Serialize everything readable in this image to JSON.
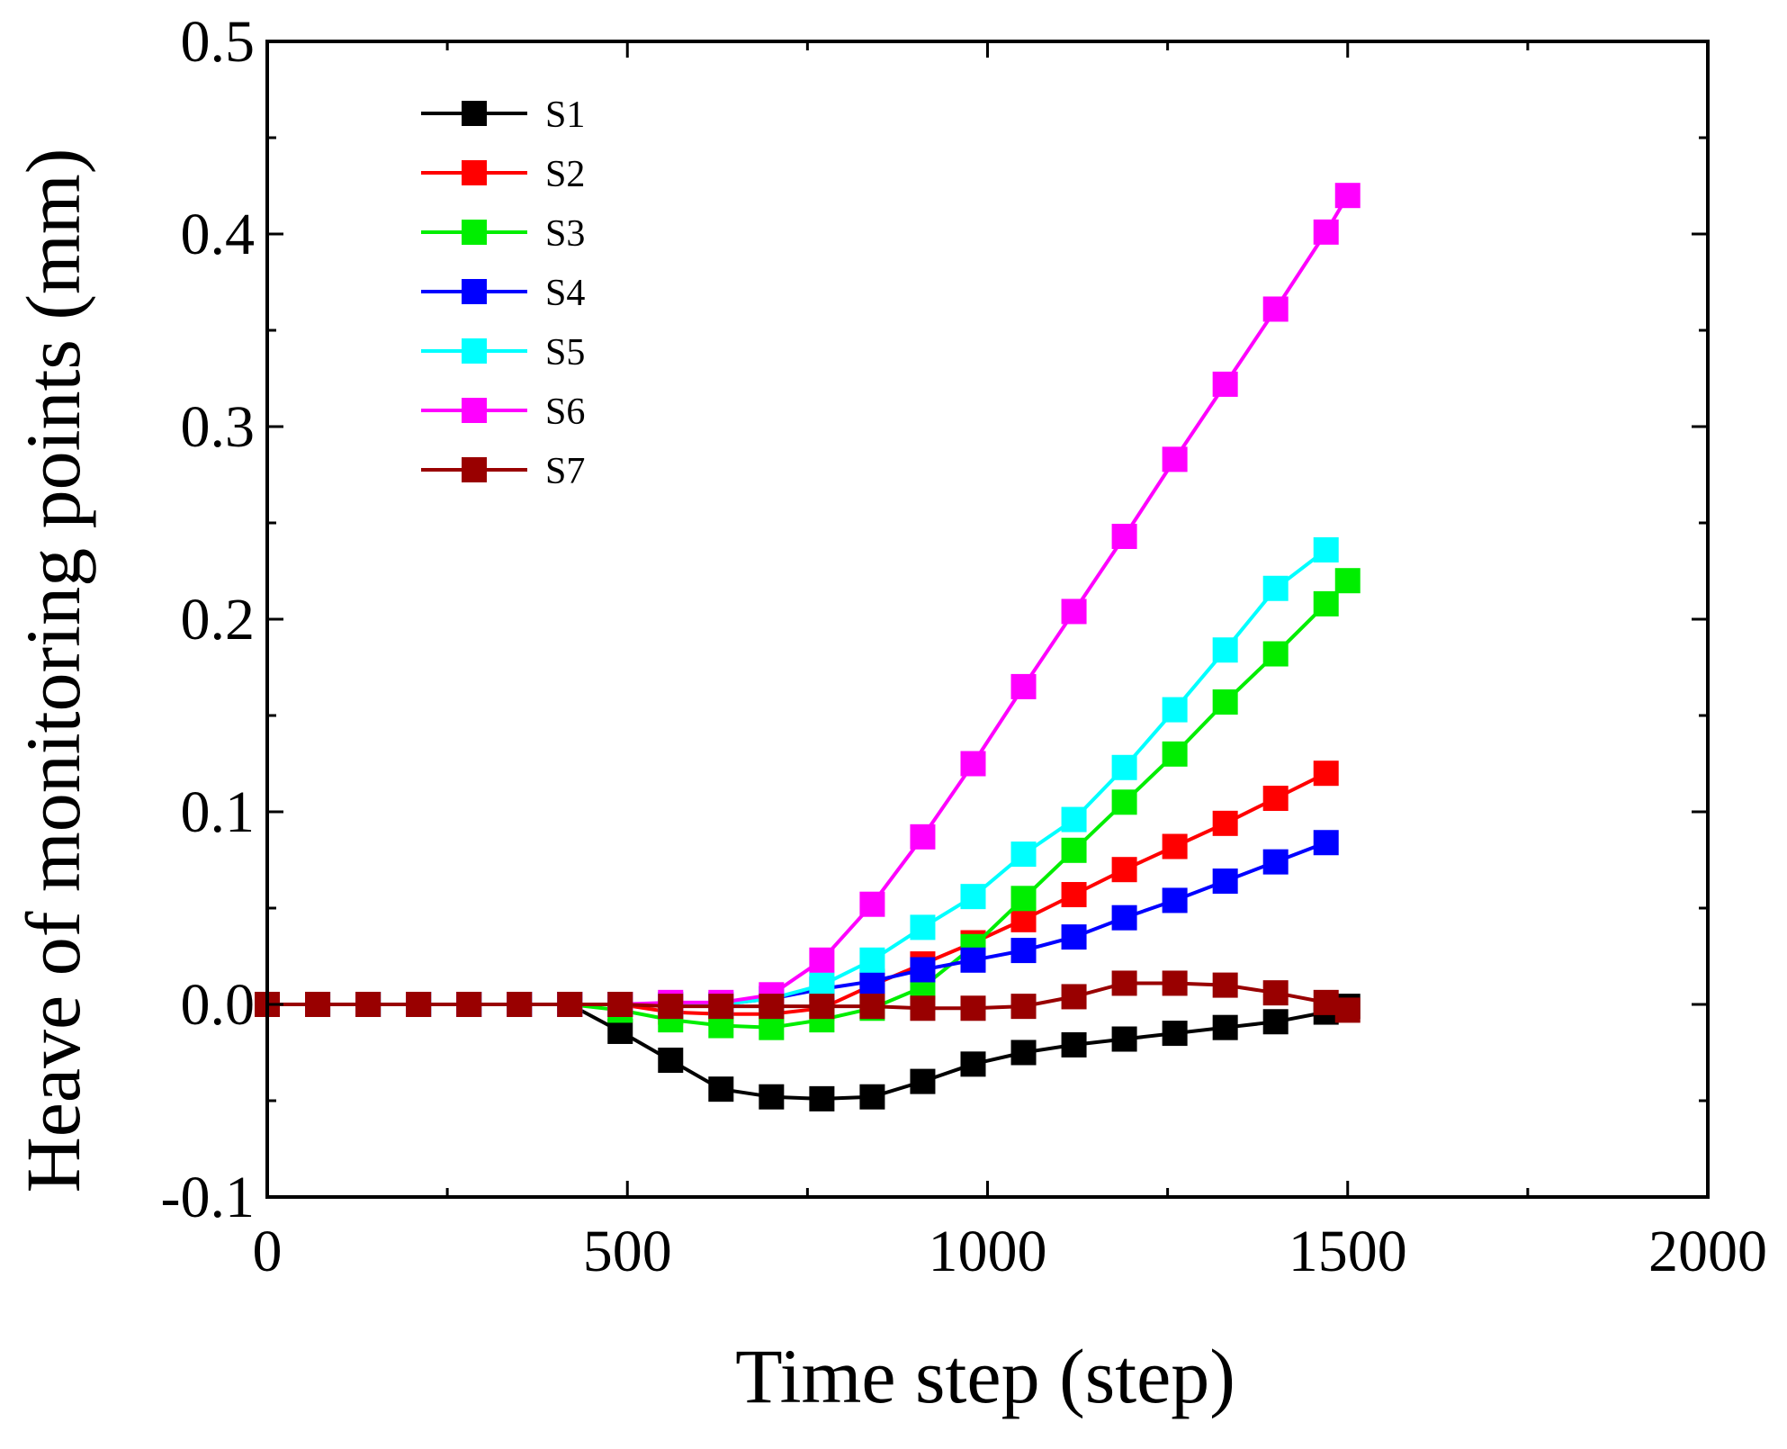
{
  "chart_data": {
    "type": "line",
    "title": "",
    "xlabel": "Time step (step)",
    "ylabel": "Heave of monitoring points (mm)",
    "xlim": [
      0,
      2000
    ],
    "ylim": [
      -0.1,
      0.5
    ],
    "xticks": [
      0,
      500,
      1000,
      1500,
      2000
    ],
    "xtick_labels": [
      "0",
      "500",
      "1000",
      "1500",
      "2000"
    ],
    "yticks": [
      -0.1,
      0.0,
      0.1,
      0.2,
      0.3,
      0.4,
      0.5
    ],
    "ytick_labels": [
      "-0.1",
      "0.0",
      "0.1",
      "0.2",
      "0.3",
      "0.4",
      "0.5"
    ],
    "grid": false,
    "legend_position": "top-left",
    "x": [
      0,
      70,
      140,
      210,
      280,
      350,
      420,
      490,
      560,
      630,
      700,
      770,
      840,
      910,
      980,
      1050,
      1120,
      1190,
      1260,
      1330,
      1400,
      1470,
      1500
    ],
    "series": [
      {
        "name": "S1",
        "color": "#000000",
        "values": [
          0,
          0,
          0,
          0,
          0,
          0,
          0,
          -0.014,
          -0.029,
          -0.044,
          -0.048,
          -0.049,
          -0.048,
          -0.04,
          -0.031,
          -0.025,
          -0.021,
          -0.018,
          -0.015,
          -0.012,
          -0.009,
          -0.004,
          -0.001
        ]
      },
      {
        "name": "S2",
        "color": "#ff0000",
        "values": [
          0,
          0,
          0,
          0,
          0,
          0,
          0,
          0,
          -0.004,
          -0.005,
          -0.005,
          -0.002,
          0.01,
          0.021,
          0.032,
          0.044,
          0.057,
          0.07,
          0.082,
          0.094,
          0.107,
          0.12,
          null
        ]
      },
      {
        "name": "S3",
        "color": "#00ee00",
        "values": [
          0,
          0,
          0,
          0,
          0,
          0,
          0,
          -0.003,
          -0.008,
          -0.011,
          -0.012,
          -0.008,
          -0.002,
          0.009,
          0.03,
          0.055,
          0.08,
          0.105,
          0.13,
          0.157,
          0.182,
          0.208,
          0.22
        ]
      },
      {
        "name": "S4",
        "color": "#0000ff",
        "values": [
          0,
          0,
          0,
          0,
          0,
          0,
          0,
          0,
          0,
          0,
          0.003,
          0.008,
          0.012,
          0.018,
          0.023,
          0.028,
          0.035,
          0.045,
          0.054,
          0.064,
          0.074,
          0.084,
          null
        ]
      },
      {
        "name": "S5",
        "color": "#00ffff",
        "values": [
          0,
          0,
          0,
          0,
          0,
          0,
          0,
          0,
          0,
          0,
          0.003,
          0.01,
          0.023,
          0.04,
          0.056,
          0.078,
          0.096,
          0.123,
          0.153,
          0.184,
          0.216,
          0.236,
          null
        ]
      },
      {
        "name": "S6",
        "color": "#ff00ff",
        "values": [
          0,
          0,
          0,
          0,
          0,
          0,
          0,
          0,
          0.001,
          0.001,
          0.005,
          0.023,
          0.052,
          0.087,
          0.125,
          0.165,
          0.204,
          0.243,
          0.283,
          0.322,
          0.361,
          0.401,
          0.42
        ]
      },
      {
        "name": "S7",
        "color": "#990000",
        "values": [
          0,
          0,
          0,
          0,
          0,
          0,
          0,
          0,
          -0.001,
          -0.001,
          -0.001,
          -0.001,
          -0.001,
          -0.002,
          -0.002,
          -0.001,
          0.004,
          0.011,
          0.011,
          0.01,
          0.006,
          0.001,
          -0.003
        ]
      }
    ]
  }
}
